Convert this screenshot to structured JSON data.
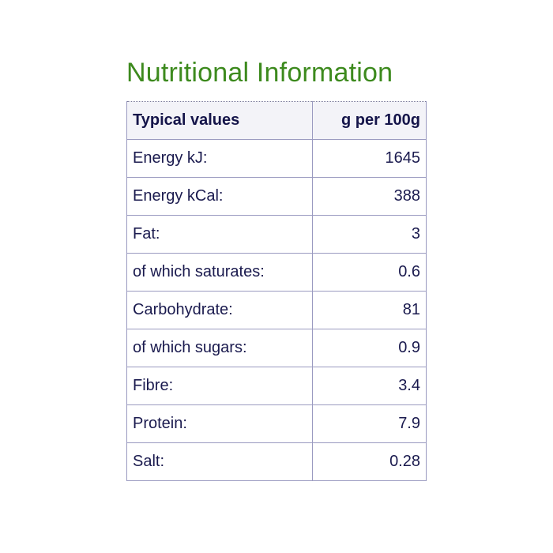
{
  "title": "Nutritional Information",
  "colors": {
    "title": "#3d8a1e",
    "text": "#1a1a4e",
    "border": "#9a9ac0",
    "header_bg": "#f3f3f8"
  },
  "table": {
    "headers": {
      "label": "Typical values",
      "value": "g per 100g"
    },
    "rows": [
      {
        "label": "Energy kJ:",
        "value": "1645"
      },
      {
        "label": "Energy kCal:",
        "value": "388"
      },
      {
        "label": "Fat:",
        "value": "3"
      },
      {
        "label": "of which saturates:",
        "value": "0.6"
      },
      {
        "label": "Carbohydrate:",
        "value": "81"
      },
      {
        "label": "of which sugars:",
        "value": "0.9"
      },
      {
        "label": "Fibre:",
        "value": "3.4"
      },
      {
        "label": "Protein:",
        "value": "7.9"
      },
      {
        "label": "Salt:",
        "value": "0.28"
      }
    ]
  }
}
